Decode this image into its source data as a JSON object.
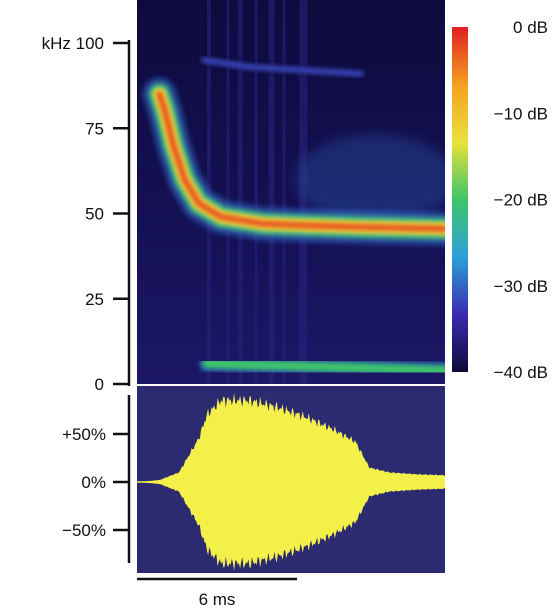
{
  "chart_data": [
    {
      "type": "heatmap",
      "panel": "spectrogram",
      "y_unit": "kHz",
      "ylim": [
        0,
        100
      ],
      "y_ticks": [
        0,
        25,
        50,
        75,
        100
      ],
      "y_tick_labels": [
        "0",
        "25",
        "50",
        "75",
        "kHz 100"
      ],
      "time_span_ms": 11,
      "colorbar": {
        "range_db": [
          -40,
          0
        ],
        "ticks": [
          0,
          -10,
          -20,
          -30,
          -40
        ],
        "tick_labels": [
          "0 dB",
          "−10 dB",
          "−20 dB",
          "−30 dB",
          "−40 dB"
        ],
        "colors": [
          "#0e0b3a",
          "#3b2bb0",
          "#2ea0d8",
          "#3ec46a",
          "#e9e23a",
          "#f5a020",
          "#e02020"
        ]
      },
      "components": [
        {
          "name": "fundamental",
          "t_ms": [
            0.8,
            1.0,
            1.3,
            1.7,
            2.2,
            3.0,
            4.5,
            6.0,
            8.0,
            11.0
          ],
          "freq_khz": [
            85,
            80,
            70,
            60,
            53,
            49,
            47,
            46.5,
            46,
            45.5
          ],
          "peak_db": -3
        },
        {
          "name": "second-harmonic",
          "t_ms": [
            2.4,
            4.0,
            6.0,
            8.0
          ],
          "freq_khz": [
            95,
            93,
            92,
            91
          ],
          "peak_db": -32
        },
        {
          "name": "low-band",
          "t_ms": [
            2.5,
            11.0
          ],
          "freq_khz": [
            6,
            4
          ],
          "peak_db": -20
        }
      ]
    },
    {
      "type": "area",
      "panel": "oscillogram",
      "y_unit": "%",
      "ylim": [
        -100,
        100
      ],
      "y_ticks": [
        50,
        0,
        -50
      ],
      "y_tick_labels": [
        "+50%",
        "0%",
        "−50%"
      ],
      "envelope_t_ms": [
        0,
        0.8,
        1.5,
        2.2,
        2.5,
        3.0,
        4.0,
        5.0,
        6.0,
        7.0,
        7.8,
        8.3,
        9.0,
        10.0,
        11.0
      ],
      "envelope_pct": [
        0,
        2,
        10,
        45,
        70,
        85,
        85,
        78,
        68,
        55,
        42,
        15,
        10,
        8,
        7
      ],
      "fill_color": "#f3f04a",
      "background": "#2c2a70"
    }
  ],
  "scale_bar": {
    "value_ms": 6,
    "label": "6 ms"
  }
}
